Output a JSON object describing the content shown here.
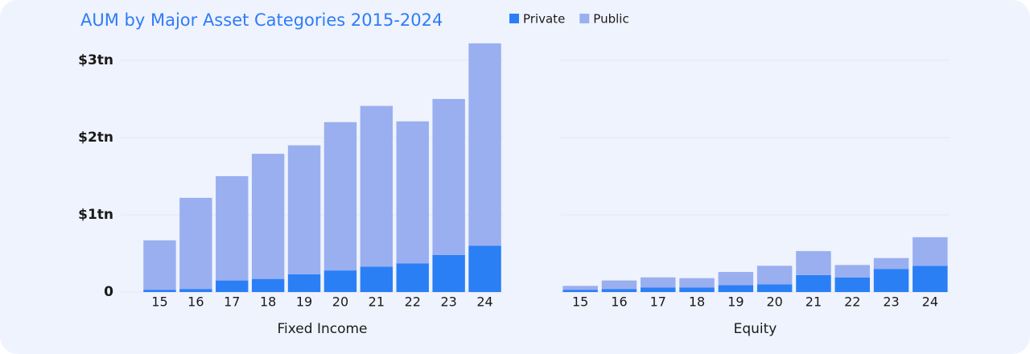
{
  "chart_data": [
    {
      "type": "bar",
      "stacked": true,
      "title": "AUM by Major Asset Categories 2015-2024",
      "x_label": "Fixed Income",
      "categories": [
        "15",
        "16",
        "17",
        "18",
        "19",
        "20",
        "21",
        "22",
        "23",
        "24"
      ],
      "series": [
        {
          "name": "Private",
          "color": "#2b7ff5",
          "values": [
            0.03,
            0.04,
            0.15,
            0.17,
            0.23,
            0.28,
            0.33,
            0.37,
            0.48,
            0.6
          ]
        },
        {
          "name": "Public",
          "color": "#9aaff0",
          "values": [
            0.64,
            1.18,
            1.35,
            1.62,
            1.67,
            1.92,
            2.08,
            1.84,
            2.02,
            2.62
          ]
        }
      ],
      "ylim": [
        0,
        3.25
      ],
      "yticks": [
        0,
        {
          "value": 1,
          "label": "$1tn"
        },
        {
          "value": 2,
          "label": "$2tn"
        },
        {
          "value": 3,
          "label": "$3tn"
        }
      ],
      "grid": true
    },
    {
      "type": "bar",
      "stacked": true,
      "x_label": "Equity",
      "categories": [
        "15",
        "16",
        "17",
        "18",
        "19",
        "20",
        "21",
        "22",
        "23",
        "24"
      ],
      "series": [
        {
          "name": "Private",
          "color": "#2b7ff5",
          "values": [
            0.03,
            0.04,
            0.06,
            0.06,
            0.09,
            0.1,
            0.22,
            0.19,
            0.3,
            0.34
          ]
        },
        {
          "name": "Public",
          "color": "#9aaff0",
          "values": [
            0.05,
            0.11,
            0.13,
            0.12,
            0.17,
            0.24,
            0.31,
            0.16,
            0.14,
            0.37
          ]
        }
      ],
      "ylim": [
        0,
        3.25
      ],
      "grid": true
    }
  ]
}
